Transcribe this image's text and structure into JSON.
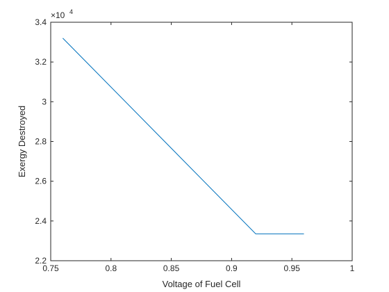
{
  "chart_data": {
    "type": "line",
    "title": "",
    "xlabel": "Voltage of Fuel Cell",
    "ylabel": "Exergy Destroyed",
    "xlim": [
      0.75,
      1
    ],
    "ylim": [
      22000,
      34000
    ],
    "x_ticks": [
      0.75,
      0.8,
      0.85,
      0.9,
      0.95,
      1
    ],
    "x_tick_labels": [
      "0.75",
      "0.8",
      "0.85",
      "0.9",
      "0.95",
      "1"
    ],
    "y_ticks": [
      22000,
      24000,
      26000,
      28000,
      30000,
      32000,
      34000
    ],
    "y_tick_labels": [
      "2.2",
      "2.4",
      "2.6",
      "2.8",
      "3",
      "3.2",
      "3.4"
    ],
    "y_exponent": {
      "base": "×10",
      "power": "4"
    },
    "grid": false,
    "line_color": "#0072BD",
    "series": [
      {
        "x": [
          0.76,
          0.92,
          0.96
        ],
        "y": [
          33200,
          23350,
          23350
        ]
      }
    ]
  }
}
